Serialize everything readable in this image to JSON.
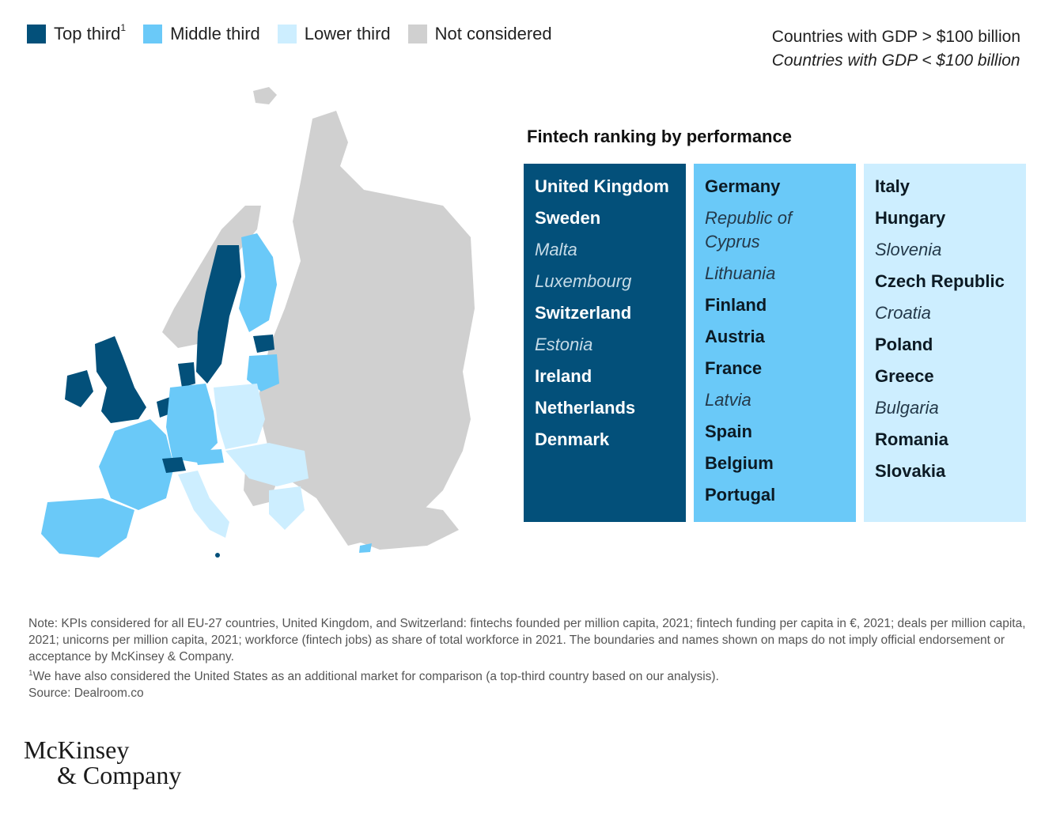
{
  "legend": {
    "items": [
      {
        "label": "Top third",
        "sup": "1",
        "color": "#03507a"
      },
      {
        "label": "Middle third",
        "sup": "",
        "color": "#6ac9f8"
      },
      {
        "label": "Lower third",
        "sup": "",
        "color": "#cdeeff"
      },
      {
        "label": "Not considered",
        "sup": "",
        "color": "#d0d0d0"
      }
    ]
  },
  "gdp_key": {
    "large": "Countries with GDP > $100 billion",
    "small": "Countries with GDP < $100 billion"
  },
  "ranking": {
    "title": "Fintech ranking by performance",
    "top_third": [
      {
        "name": "United Kingdom",
        "gdp": "large"
      },
      {
        "name": "Sweden",
        "gdp": "large"
      },
      {
        "name": "Malta",
        "gdp": "small"
      },
      {
        "name": "Luxembourg",
        "gdp": "small"
      },
      {
        "name": "Switzerland",
        "gdp": "large"
      },
      {
        "name": "Estonia",
        "gdp": "small"
      },
      {
        "name": "Ireland",
        "gdp": "large"
      },
      {
        "name": "Netherlands",
        "gdp": "large"
      },
      {
        "name": "Denmark",
        "gdp": "large"
      }
    ],
    "middle_third": [
      {
        "name": "Germany",
        "gdp": "large"
      },
      {
        "name": "Republic of Cyprus",
        "gdp": "small"
      },
      {
        "name": "Lithuania",
        "gdp": "small"
      },
      {
        "name": "Finland",
        "gdp": "large"
      },
      {
        "name": "Austria",
        "gdp": "large"
      },
      {
        "name": "France",
        "gdp": "large"
      },
      {
        "name": "Latvia",
        "gdp": "small"
      },
      {
        "name": "Spain",
        "gdp": "large"
      },
      {
        "name": "Belgium",
        "gdp": "large"
      },
      {
        "name": "Portugal",
        "gdp": "large"
      }
    ],
    "lower_third": [
      {
        "name": "Italy",
        "gdp": "large"
      },
      {
        "name": "Hungary",
        "gdp": "large"
      },
      {
        "name": "Slovenia",
        "gdp": "small"
      },
      {
        "name": "Czech Republic",
        "gdp": "large"
      },
      {
        "name": "Croatia",
        "gdp": "small"
      },
      {
        "name": "Poland",
        "gdp": "large"
      },
      {
        "name": "Greece",
        "gdp": "large"
      },
      {
        "name": "Bulgaria",
        "gdp": "small"
      },
      {
        "name": "Romania",
        "gdp": "large"
      },
      {
        "name": "Slovakia",
        "gdp": "large"
      }
    ]
  },
  "notes": {
    "note": "Note: KPIs considered for all EU-27 countries, United Kingdom, and Switzerland: fintechs founded per million capita, 2021; fintech funding per capita in €, 2021; deals per million capita, 2021; unicorns per million capita, 2021; workforce (fintech jobs) as share of total workforce in 2021. The boundaries and names shown on maps do not imply official endorsement or acceptance by McKinsey & Company.",
    "footnote_mark": "1",
    "footnote": "We have also considered the United States as an additional market for comparison (a top-third country based on our analysis).",
    "source": "Source: Dealroom.co"
  },
  "logo": {
    "line1": "McKinsey",
    "line2": "& Company"
  }
}
